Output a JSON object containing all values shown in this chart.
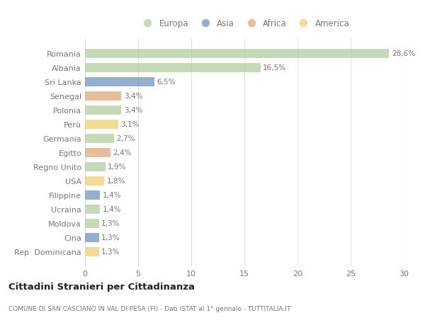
{
  "countries": [
    "Romania",
    "Albania",
    "Sri Lanka",
    "Senegal",
    "Polonia",
    "Perù",
    "Germania",
    "Egitto",
    "Regno Unito",
    "USA",
    "Filippine",
    "Ucraina",
    "Moldova",
    "Cina",
    "Rep. Dominicana"
  ],
  "values": [
    28.6,
    16.5,
    6.5,
    3.4,
    3.4,
    3.1,
    2.7,
    2.4,
    1.9,
    1.8,
    1.4,
    1.4,
    1.3,
    1.3,
    1.3
  ],
  "labels": [
    "28,6%",
    "16,5%",
    "6,5%",
    "3,4%",
    "3,4%",
    "3,1%",
    "2,7%",
    "2,4%",
    "1,9%",
    "1,8%",
    "1,4%",
    "1,4%",
    "1,3%",
    "1,3%",
    "1,3%"
  ],
  "continents": [
    "Europa",
    "Europa",
    "Asia",
    "Africa",
    "Europa",
    "America",
    "Europa",
    "Africa",
    "Europa",
    "America",
    "Asia",
    "Europa",
    "Europa",
    "Asia",
    "America"
  ],
  "colors": {
    "Europa": "#b5ceA0",
    "Asia": "#7094c0",
    "Africa": "#e0a87a",
    "America": "#f0d070"
  },
  "legend_order": [
    "Europa",
    "Asia",
    "Africa",
    "America"
  ],
  "title": "Cittadini Stranieri per Cittadinanza",
  "subtitle": "COMUNE DI SAN CASCIANO IN VAL DI PESA (FI) - Dati ISTAT al 1° gennaio - TUTTITALIA.IT",
  "xlim": [
    0,
    30
  ],
  "xticks": [
    0,
    5,
    10,
    15,
    20,
    25,
    30
  ],
  "bg_color": "#ffffff",
  "grid_color": "#e0e0e0",
  "label_color": "#777777",
  "bar_alpha": 0.75
}
